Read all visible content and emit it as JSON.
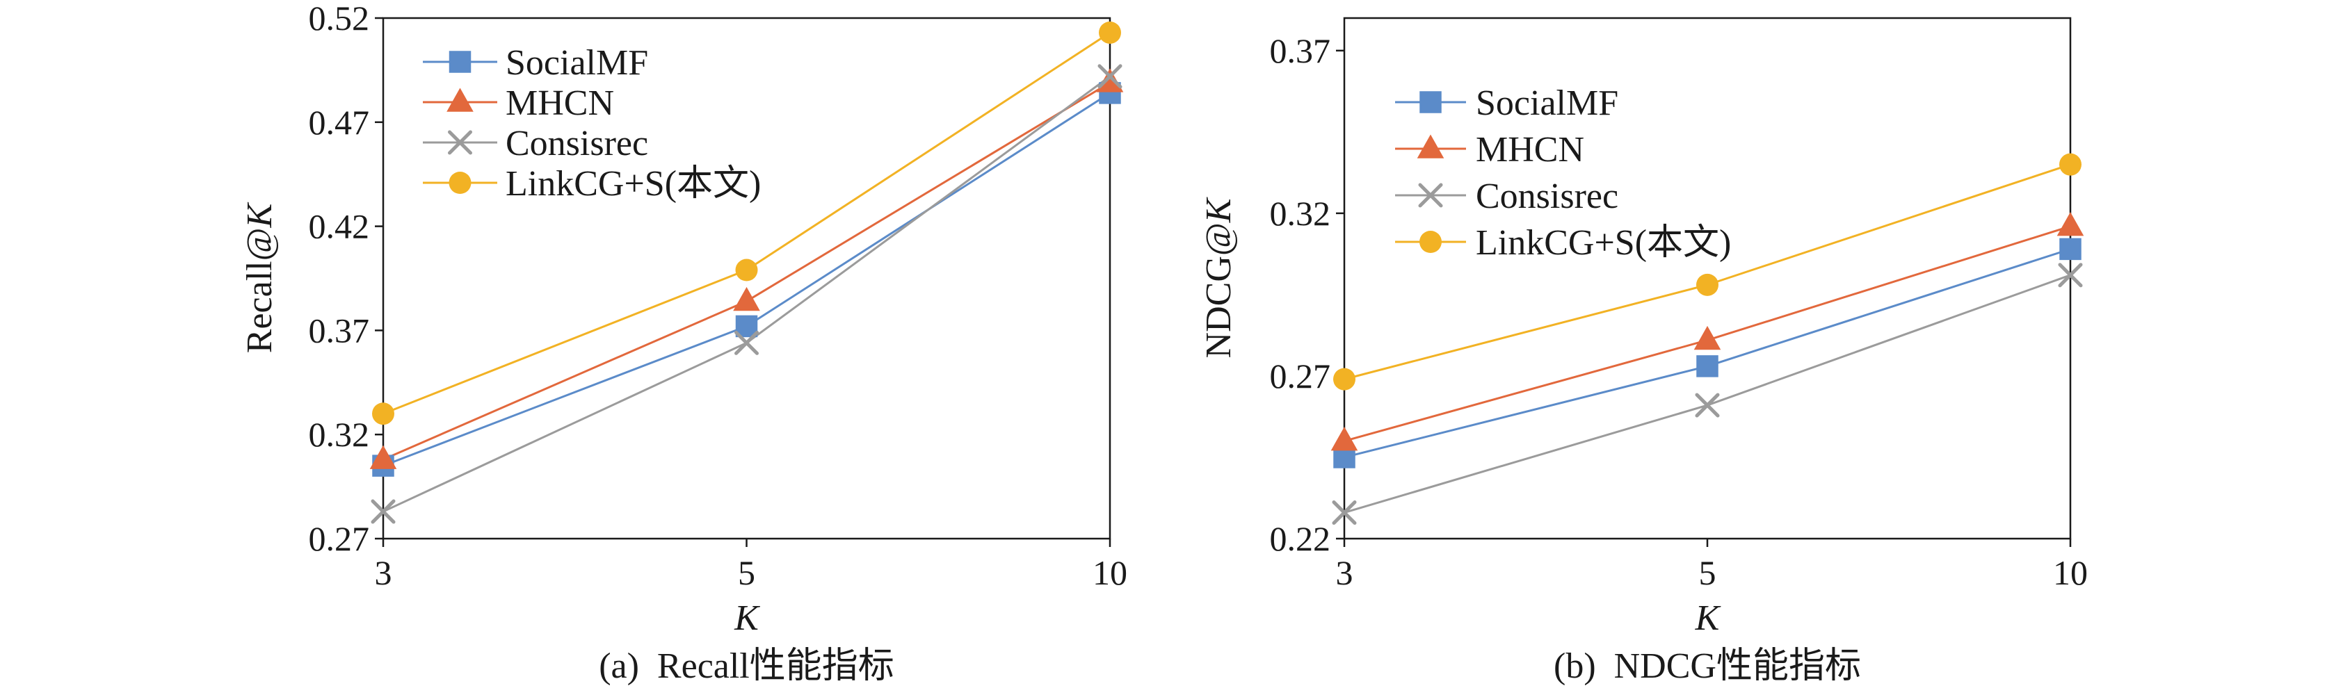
{
  "chart_data": [
    {
      "type": "line",
      "caption": "(a)  Recall性能指标",
      "xlabel": "K",
      "ylabel": "Recall@K",
      "categories": [
        "3",
        "5",
        "10"
      ],
      "ylim": [
        0.27,
        0.52
      ],
      "yticks": [
        0.27,
        0.32,
        0.37,
        0.42,
        0.47,
        0.52
      ],
      "grid": false,
      "legend": "top-left",
      "series": [
        {
          "name": "SocialMF",
          "marker": "square",
          "color": "#5b8bc9",
          "values": [
            0.305,
            0.372,
            0.484
          ]
        },
        {
          "name": "MHCN",
          "marker": "triangle",
          "color": "#e2683c",
          "values": [
            0.308,
            0.384,
            0.489
          ]
        },
        {
          "name": "Consisrec",
          "marker": "x-cross",
          "color": "#9b9b9b",
          "values": [
            0.283,
            0.364,
            0.492
          ]
        },
        {
          "name": "LinkCG+S(本文)",
          "marker": "circle",
          "color": "#f2b224",
          "values": [
            0.33,
            0.399,
            0.513
          ]
        }
      ]
    },
    {
      "type": "line",
      "caption": "(b)  NDCG性能指标",
      "xlabel": "K",
      "ylabel": "NDCG@K",
      "categories": [
        "3",
        "5",
        "10"
      ],
      "ylim": [
        0.22,
        0.38
      ],
      "yticks": [
        0.22,
        0.27,
        0.32,
        0.37
      ],
      "grid": false,
      "legend": "top-left",
      "series": [
        {
          "name": "SocialMF",
          "marker": "square",
          "color": "#5b8bc9",
          "values": [
            0.245,
            0.273,
            0.309
          ]
        },
        {
          "name": "MHCN",
          "marker": "triangle",
          "color": "#e2683c",
          "values": [
            0.25,
            0.281,
            0.316
          ]
        },
        {
          "name": "Consisrec",
          "marker": "x-cross",
          "color": "#9b9b9b",
          "values": [
            0.228,
            0.261,
            0.301
          ]
        },
        {
          "name": "LinkCG+S(本文)",
          "marker": "circle",
          "color": "#f2b224",
          "values": [
            0.269,
            0.298,
            0.335
          ]
        }
      ]
    }
  ]
}
